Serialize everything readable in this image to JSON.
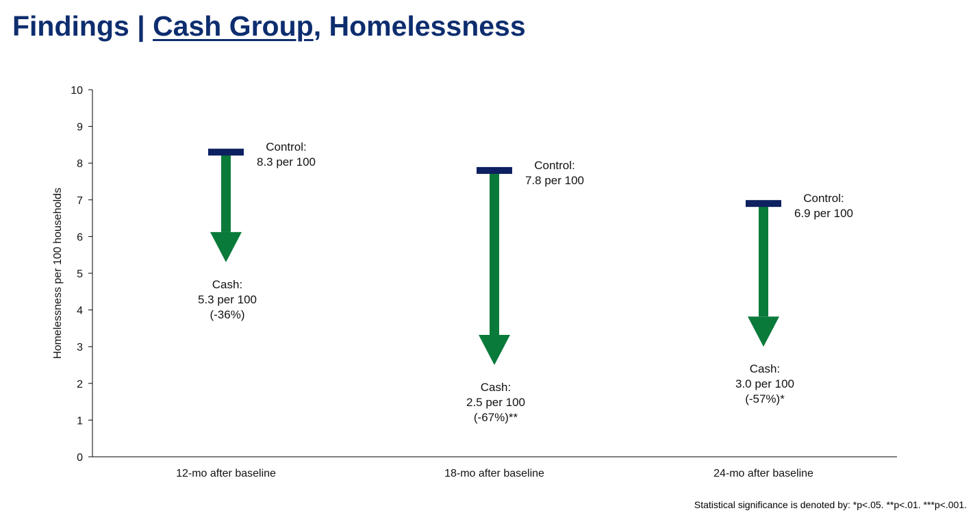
{
  "slide": {
    "title_prefix": "Findings | ",
    "title_underlined": "Cash Group",
    "title_suffix": ", Homelessness",
    "footnote": "Statistical significance is denoted by: *p<.05. **p<.01. ***p<.001."
  },
  "colors": {
    "title": "#0d2d6e",
    "control_bar": "#0d2060",
    "arrow": "#0a7a3a",
    "axis": "#000000"
  },
  "chart_data": {
    "type": "bar",
    "ylabel": "Homelessness per 100 households",
    "ylim": [
      0,
      10
    ],
    "yticks": [
      0,
      1,
      2,
      3,
      4,
      5,
      6,
      7,
      8,
      9,
      10
    ],
    "categories": [
      "12-mo after baseline",
      "18-mo after baseline",
      "24-mo after baseline"
    ],
    "series": [
      {
        "name": "Control",
        "values": [
          8.3,
          7.8,
          6.9
        ]
      },
      {
        "name": "Cash",
        "values": [
          5.3,
          2.5,
          3.0
        ]
      }
    ],
    "annotations": [
      {
        "control_lines": [
          "Control:",
          "8.3 per 100"
        ],
        "cash_lines": [
          "Cash:",
          "5.3 per 100",
          "(-36%)"
        ]
      },
      {
        "control_lines": [
          "Control:",
          "7.8 per 100"
        ],
        "cash_lines": [
          "Cash:",
          "2.5 per 100",
          "(-67%)**"
        ]
      },
      {
        "control_lines": [
          "Control:",
          "6.9 per 100"
        ],
        "cash_lines": [
          "Cash:",
          "3.0 per 100",
          "(-57%)*"
        ]
      }
    ],
    "grid": false
  }
}
